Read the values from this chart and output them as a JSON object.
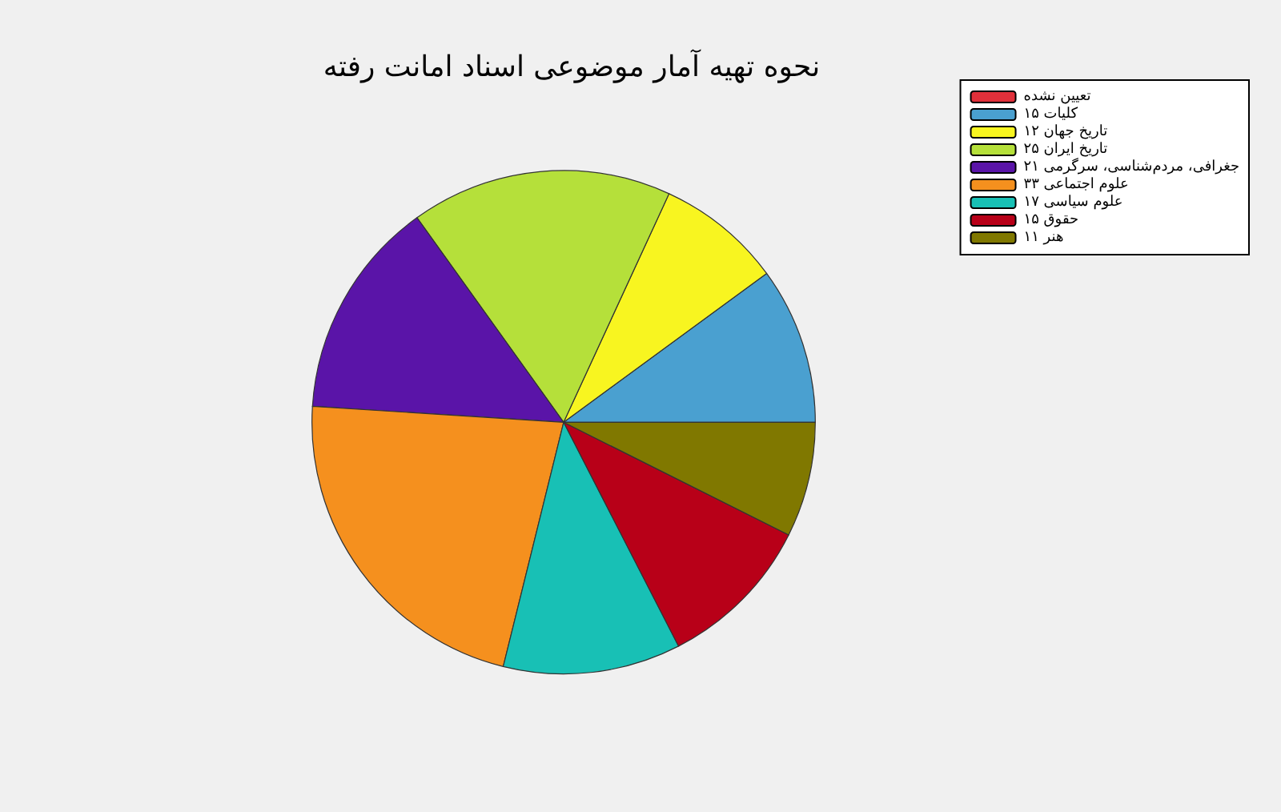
{
  "chart_data": {
    "type": "pie",
    "title": "نحوه تهیه آمار موضوعی اسناد امانت رفته",
    "categories": [
      "تعیین نشده",
      "کلیات ۱۵",
      "تاریخ جهان ۱۲",
      "تاریخ ایران ۲۵",
      "جغرافی، مردم‌شناسی، سرگرمی ۲۱",
      "علوم اجتماعی ۳۳",
      "علوم سیاسی ۱۷",
      "حقوق ۱۵",
      "هنر ۱۱"
    ],
    "values": [
      0,
      15,
      12,
      25,
      21,
      33,
      17,
      15,
      11
    ],
    "colors": [
      "#e0303a",
      "#4aa0d0",
      "#f8f520",
      "#b5e03a",
      "#5a14a8",
      "#f5901e",
      "#18c0b5",
      "#b80018",
      "#807800"
    ],
    "legend": "top right"
  }
}
